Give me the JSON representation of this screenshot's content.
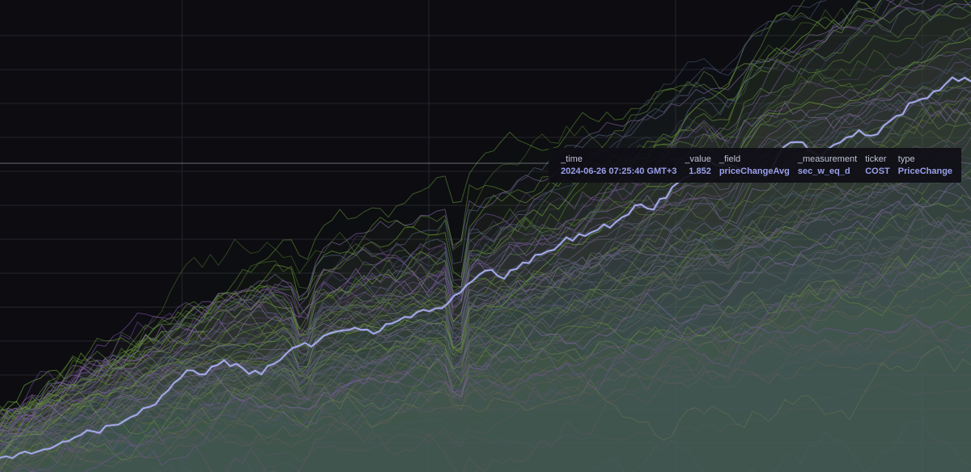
{
  "chart_data": {
    "type": "line",
    "title": "",
    "xlabel": "",
    "ylabel": "",
    "grid": true,
    "legend": "none",
    "series_count": 90,
    "highlighted_series": {
      "name": "COST",
      "y": [
        0.0,
        0.02,
        0.03,
        0.06,
        0.1,
        0.13,
        0.16,
        0.2,
        0.25,
        0.33,
        0.43,
        0.41,
        0.48,
        0.44,
        0.41,
        0.48,
        0.55,
        0.57,
        0.62,
        0.64,
        0.61,
        0.66,
        0.69,
        0.72,
        0.76,
        0.85,
        0.92,
        0.88,
        0.96,
        1.0,
        1.05,
        1.1,
        1.12,
        1.16,
        1.24,
        1.22,
        1.33,
        1.39,
        1.46,
        1.44,
        1.41,
        1.38,
        1.53,
        1.55,
        1.48,
        1.55,
        1.61,
        1.59,
        1.68,
        1.75,
        1.8,
        1.87,
        1.85
      ]
    },
    "colors": {
      "background": "#0c0c11",
      "grid": "#23232c",
      "highlight": "#a9aef0",
      "palette": [
        "#6b9a3a",
        "#7d52a3",
        "#4e5a76",
        "#5d8a37",
        "#8f6bb8",
        "#3c4660"
      ]
    }
  },
  "tooltip": {
    "headers": {
      "time": "_time",
      "value": "_value",
      "field": "_field",
      "measurement": "_measurement",
      "ticker": "ticker",
      "type": "type"
    },
    "row": {
      "time": "2024-06-26 07:25:40 GMT+3",
      "value": "1.852",
      "field": "priceChangeAvg",
      "measurement": "sec_w_eq_d",
      "ticker": "COST",
      "type": "PriceChange"
    }
  }
}
